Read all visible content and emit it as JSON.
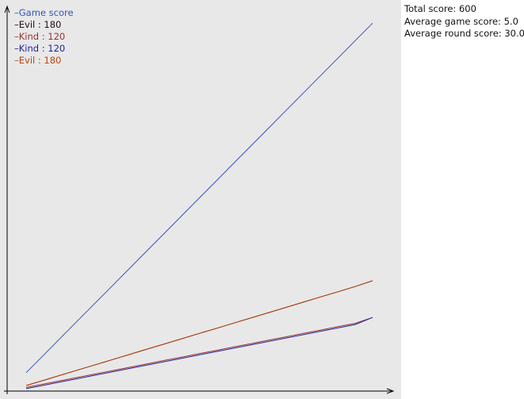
{
  "chart_data": {
    "type": "line",
    "title": "",
    "xlabel": "",
    "ylabel": "",
    "x": [
      0,
      1,
      2,
      3,
      4,
      5,
      6,
      7,
      8,
      9,
      10,
      11,
      12,
      13,
      14,
      15,
      16,
      17,
      18,
      19,
      20
    ],
    "ylim": [
      0,
      630
    ],
    "grid": false,
    "legend_position": "top-left",
    "series": [
      {
        "name": "Game score",
        "color": "#3355bb",
        "values": [
          30,
          58.5,
          87,
          115.5,
          144,
          172.5,
          201,
          229.5,
          258,
          286.5,
          315,
          343.5,
          372,
          400.5,
          429,
          457.5,
          486,
          514.5,
          543,
          571.5,
          600
        ]
      },
      {
        "name": "Evil : 180",
        "color": "#221111",
        "values": [
          9,
          17.5,
          26,
          34.5,
          43,
          51.5,
          60,
          68.5,
          77,
          85.5,
          94,
          102.5,
          111,
          119.5,
          128,
          136.5,
          145,
          153.5,
          162,
          170.5,
          180
        ]
      },
      {
        "name": "Kind : 120",
        "color": "#993333",
        "values": [
          6,
          11.5,
          17,
          22.5,
          28,
          33.5,
          39,
          44.5,
          50,
          55.5,
          61,
          66.5,
          72,
          77.5,
          83,
          88.5,
          94,
          99.5,
          105,
          110.5,
          120
        ]
      },
      {
        "name": "Kind : 120",
        "color": "#222299",
        "values": [
          4,
          9.5,
          15,
          20.5,
          26,
          31.5,
          37,
          42.5,
          48,
          53.5,
          59,
          64.5,
          70,
          75.5,
          81,
          86.5,
          92,
          97.5,
          103,
          108.5,
          120
        ]
      },
      {
        "name": "Evil : 180",
        "color": "#bb4411",
        "values": [
          9,
          17.5,
          26,
          34.5,
          43,
          51.5,
          60,
          68.5,
          77,
          85.5,
          94,
          102.5,
          111,
          119.5,
          128,
          136.5,
          145,
          153.5,
          162,
          170.5,
          180
        ]
      }
    ]
  },
  "legend": {
    "dash": "–",
    "items": [
      {
        "label": "Game score",
        "color": "#3355bb"
      },
      {
        "label": "Evil : 180",
        "color": "#221111"
      },
      {
        "label": "Kind : 120",
        "color": "#993333"
      },
      {
        "label": "Kind : 120",
        "color": "#222299"
      },
      {
        "label": "Evil : 180",
        "color": "#bb4411"
      }
    ]
  },
  "stats": {
    "total_score": "Total score: 600",
    "average_game_score": "Average game score: 5.0",
    "average_round_score": "Average round score: 30.0"
  },
  "colors": {
    "plot_background": "#e8e8e8",
    "axis": "#000000"
  }
}
